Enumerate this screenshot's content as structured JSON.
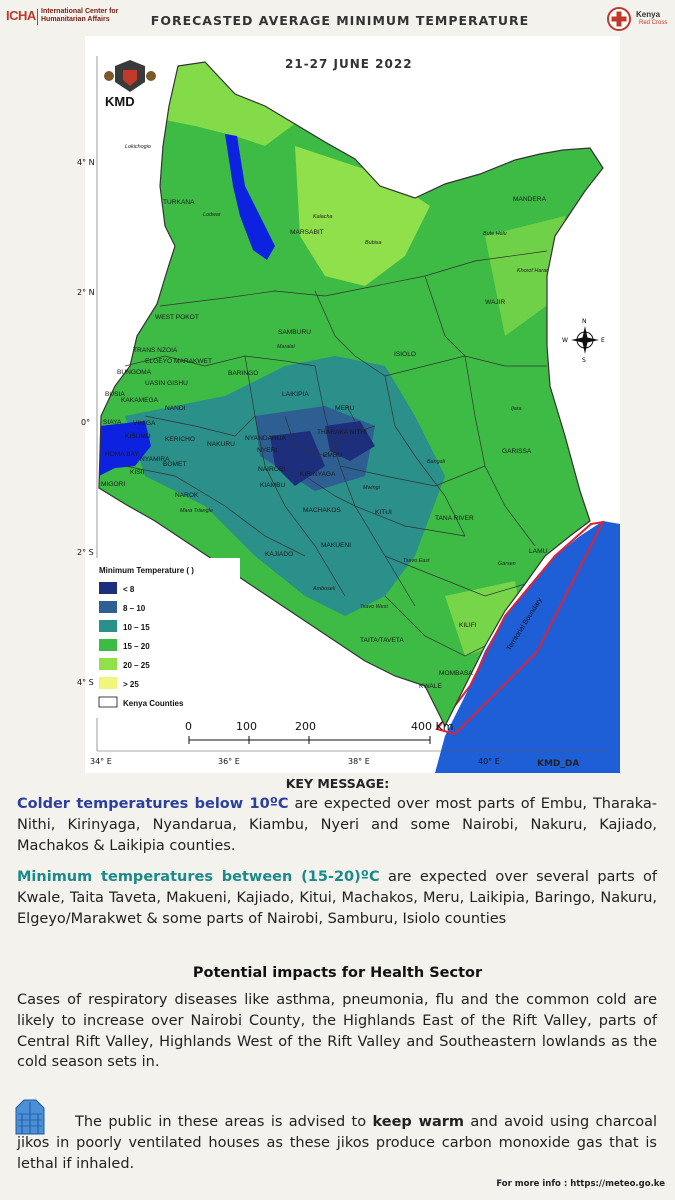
{
  "header": {
    "icha_mark": "ICHA",
    "icha_name_1": "International Center for",
    "icha_name_2": "Humanitarian Affairs",
    "title": "FORECASTED AVERAGE MINIMUM TEMPERATURE",
    "krc_name": "Kenya",
    "krc_sub": "Red Cross"
  },
  "map": {
    "date": "21-27 JUNE 2022",
    "agency": "KMD",
    "credit": "KMD_DA",
    "lat_labels": [
      "4° N",
      "2° N",
      "0°",
      "2° S",
      "4° S"
    ],
    "lon_labels": [
      "34° E",
      "36° E",
      "38° E",
      "40° E"
    ],
    "scale_labels": [
      "0",
      "100",
      "200",
      "400 Km"
    ],
    "compass": {
      "n": "N",
      "s": "S",
      "e": "E",
      "w": "W"
    },
    "boundary_label": "Territorial Boundary",
    "counties": [
      "TURKANA",
      "MARSABIT",
      "MANDERA",
      "WAJIR",
      "WEST POKOT",
      "SAMBURU",
      "ISIOLO",
      "TRANS NZOIA",
      "ELGEYO MARAKWET",
      "BUNGOMA",
      "UASIN GISHU",
      "BARINGO",
      "BUSIA",
      "KAKAMEGA",
      "NANDI",
      "LAIKIPIA",
      "MERU",
      "SIAYA",
      "VIHIGA",
      "KISUMU",
      "KERICHO",
      "NAKURU",
      "NYANDARUA",
      "THARAKA NITHI",
      "HOMA BAY",
      "NYAMIRA",
      "BOMET",
      "NYERI",
      "EMBU",
      "KISII",
      "MIGORI",
      "NAIROBI",
      "KIAMBU",
      "KIRINYAGA",
      "GARISSA",
      "NAROK",
      "MACHAKOS",
      "KITUI",
      "TANA RIVER",
      "KAJIADO",
      "MAKUENI",
      "LAMU",
      "TAITA/TAVETA",
      "KILIFI",
      "MOMBASA",
      "KWALE"
    ],
    "towns": [
      "Lokichogio",
      "Lodwar",
      "Kalacha",
      "Bubisa",
      "Maralal",
      "Bute Helu",
      "Khorof Harar",
      "Ijara",
      "Bangali",
      "Mwingi",
      "Tsavo East",
      "Garsen",
      "Amboseli",
      "Mara Triangle",
      "Tsavo West"
    ]
  },
  "legend": {
    "title": "Minimum Temperature (  )",
    "items": [
      {
        "label": "< 8",
        "color": "#1d2e7c"
      },
      {
        "label": "8 – 10",
        "color": "#2d5f92"
      },
      {
        "label": "10 – 15",
        "color": "#2b8f8a"
      },
      {
        "label": "15 – 20",
        "color": "#3dbb45"
      },
      {
        "label": "20 – 25",
        "color": "#8fe04a"
      },
      {
        "label": "> 25",
        "color": "#f1f57c"
      }
    ],
    "counties_label": "Kenya Counties"
  },
  "key_message": {
    "title": "KEY MESSAGE:",
    "p1_hl": "Colder temperatures below 10ºC",
    "p1_rest": " are expected over most parts of Embu, Tharaka-Nithi, Kirinyaga, Nyandarua, Kiambu, Nyeri and some Nairobi, Nakuru, Kajiado, Machakos & Laikipia counties.",
    "p2_hl": "Minimum temperatures between (15-20)ºC",
    "p2_rest": " are expected over several parts of Kwale, Taita Taveta, Makueni, Kajiado, Kitui, Machakos, Meru, Laikipia, Baringo, Nakuru, Elgeyo/Marakwet & some parts of Nairobi, Samburu, Isiolo counties"
  },
  "impacts": {
    "title": "Potential impacts for Health Sector",
    "p1": "Cases of respiratory diseases like asthma, pneumonia, flu and the common cold are likely to increase over Nairobi County, the Highlands East of the Rift Valley, parts of Central Rift Valley, Highlands West of the Rift Valley and Southeastern lowlands as the cold season sets in.",
    "p2_pre": "The public in these areas is advised to ",
    "p2_bold": "keep warm",
    "p2_post": " and avoid using charcoal jikos in poorly ventilated houses as these jikos produce carbon monoxide gas that is lethal if inhaled."
  },
  "footer": {
    "info": "For more info : https://meteo.go.ke"
  },
  "colors": {
    "highlight": "#2a3fa0",
    "teal_highlight": "#1a8a8a",
    "ocean": "#1e5fd8",
    "boundary": "#d8233a"
  }
}
